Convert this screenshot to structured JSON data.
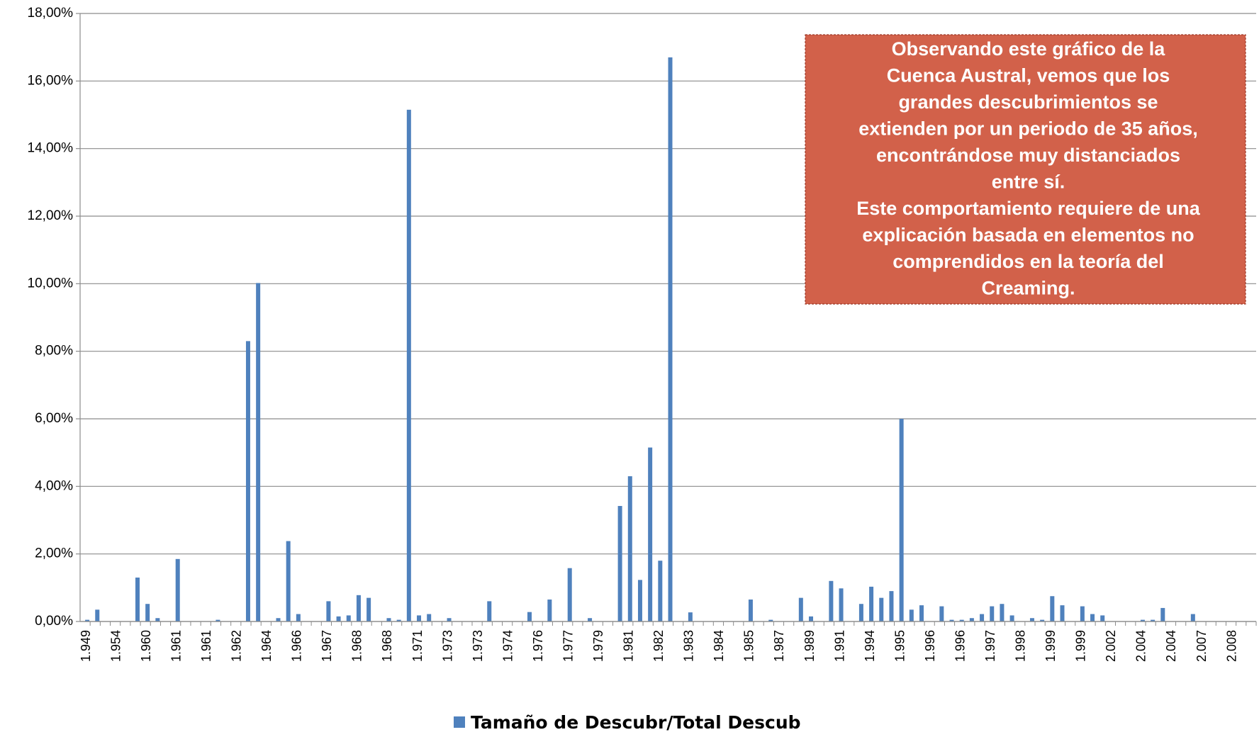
{
  "chart_data": {
    "type": "bar",
    "color": "#4f81bd",
    "grid": true,
    "ylim": [
      0,
      18
    ],
    "yticks": [
      {
        "value": 0,
        "label": "0,00%"
      },
      {
        "value": 2,
        "label": "2,00%"
      },
      {
        "value": 4,
        "label": "4,00%"
      },
      {
        "value": 6,
        "label": "6,00%"
      },
      {
        "value": 8,
        "label": "8,00%"
      },
      {
        "value": 10,
        "label": "10,00%"
      },
      {
        "value": 12,
        "label": "12,00%"
      },
      {
        "value": 14,
        "label": "14,00%"
      },
      {
        "value": 16,
        "label": "16,00%"
      },
      {
        "value": 18,
        "label": "18,00%"
      }
    ],
    "legend": "Tamaño de Descubr/Total Descub",
    "annotation": [
      "Observando este gráfico de la",
      "Cuenca Austral,  vemos que los",
      "grandes descubrimientos se",
      "extienden por un periodo de 35 años,",
      "encontrándose muy distanciados",
      "entre sí.",
      "Este comportamiento requiere de una",
      "explicación basada en elementos no",
      "comprendidos en la teoría del",
      "Creaming."
    ],
    "categories": [
      "1.949",
      null,
      null,
      "1.954",
      null,
      null,
      "1.960",
      null,
      null,
      "1.961",
      null,
      null,
      "1.961",
      null,
      null,
      "1.962",
      null,
      null,
      "1.964",
      null,
      null,
      "1.966",
      null,
      null,
      "1.967",
      null,
      null,
      "1.968",
      null,
      null,
      "1.968",
      null,
      null,
      "1.971",
      null,
      null,
      "1.973",
      null,
      null,
      "1.973",
      null,
      null,
      "1.974",
      null,
      null,
      "1.976",
      null,
      null,
      "1.977",
      null,
      null,
      "1.979",
      null,
      null,
      "1.981",
      null,
      null,
      "1.982",
      null,
      null,
      "1.983",
      null,
      null,
      "1.984",
      null,
      null,
      "1.985",
      null,
      null,
      "1.987",
      null,
      null,
      "1.989",
      null,
      null,
      "1.991",
      null,
      null,
      "1.994",
      null,
      null,
      "1.995",
      null,
      null,
      "1.996",
      null,
      null,
      "1.996",
      null,
      null,
      "1.997",
      null,
      null,
      "1.998",
      null,
      null,
      "1.999",
      null,
      null,
      "1.999",
      null,
      null,
      "2.002",
      null,
      null,
      "2.004",
      null,
      null,
      "2.004",
      null,
      null,
      "2.007",
      null,
      null,
      "2.008",
      null,
      null
    ],
    "values": [
      0.05,
      0.35,
      0,
      0,
      0,
      1.3,
      0.52,
      0.1,
      0,
      1.85,
      0,
      0,
      0,
      0.05,
      0,
      0,
      8.3,
      10.02,
      0,
      0.1,
      2.38,
      0.22,
      0,
      0,
      0.6,
      0.15,
      0.18,
      0.78,
      0.7,
      0,
      0.1,
      0.05,
      15.15,
      0.18,
      0.22,
      0,
      0.1,
      0,
      0,
      0,
      0.6,
      0,
      0,
      0,
      0.28,
      0,
      0.65,
      0,
      1.58,
      0,
      0.1,
      0,
      0,
      3.42,
      4.3,
      1.23,
      5.15,
      1.8,
      16.7,
      0,
      0.27,
      0,
      0,
      0,
      0,
      0,
      0.65,
      0,
      0.05,
      0,
      0,
      0.7,
      0.15,
      0,
      1.2,
      0.98,
      0,
      0.52,
      1.03,
      0.7,
      0.9,
      6,
      0.35,
      0.48,
      0,
      0.45,
      0.05,
      0.05,
      0.1,
      0.22,
      0.45,
      0.52,
      0.18,
      0,
      0.1,
      0.05,
      0.75,
      0.48,
      0,
      0.45,
      0.22,
      0.18,
      0,
      0,
      0,
      0.05,
      0.05,
      0.4,
      0,
      0,
      0.22,
      0,
      0,
      0,
      0,
      0,
      0
    ]
  }
}
